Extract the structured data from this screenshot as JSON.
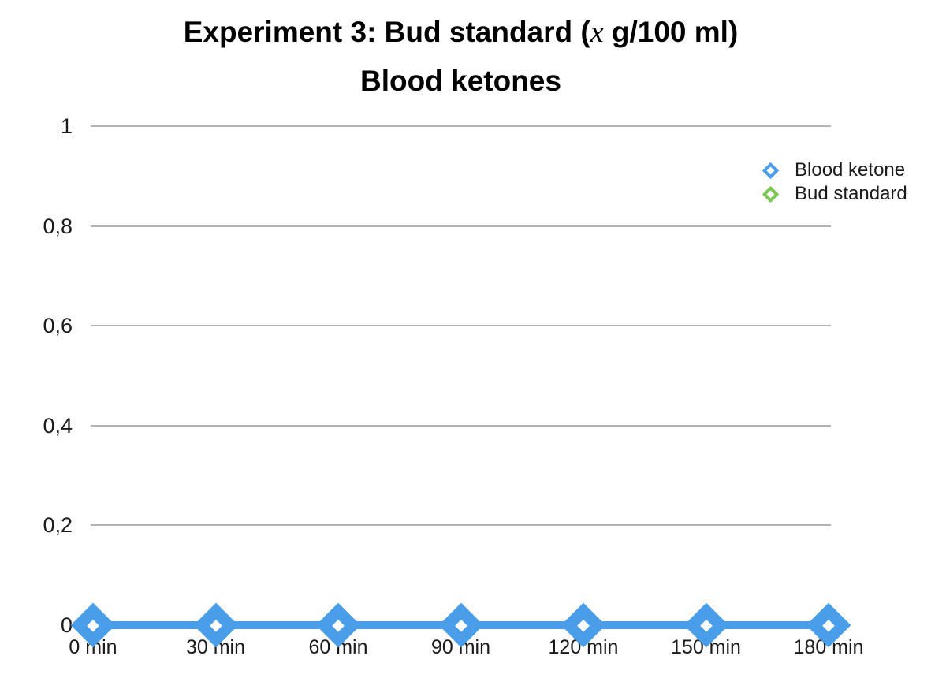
{
  "title": {
    "line1_prefix": "Experiment 3: Bud standard (",
    "line1_variable": "x",
    "line1_suffix": " g/100 ml)",
    "line2": "Blood ketones"
  },
  "legend": {
    "items": [
      {
        "label": "Blood ketone",
        "color": "#4a9de9"
      },
      {
        "label": "Bud standard",
        "color": "#7cc655"
      }
    ]
  },
  "chart_data": {
    "type": "line",
    "title": "Experiment 3: Bud standard (x g/100 ml)",
    "subtitle": "Blood ketones",
    "categories": [
      "0 min",
      "30 min",
      "60 min",
      "90 min",
      "120 min",
      "150 min",
      "180 min"
    ],
    "series": [
      {
        "name": "Blood ketone",
        "color": "#4a9de9",
        "marker": "open-diamond",
        "values": [
          0,
          0,
          0,
          0,
          0,
          0,
          0
        ]
      },
      {
        "name": "Bud standard",
        "color": "#7cc655",
        "marker": "open-diamond",
        "values": [
          0,
          0,
          0,
          0,
          0,
          0,
          0
        ]
      }
    ],
    "xlabel": "",
    "ylabel": "",
    "ylim": [
      0,
      1
    ],
    "yticks": [
      {
        "value": 0,
        "label": "0"
      },
      {
        "value": 0.2,
        "label": "0,2"
      },
      {
        "value": 0.4,
        "label": "0,4"
      },
      {
        "value": 0.6,
        "label": "0,6"
      },
      {
        "value": 0.8,
        "label": "0,8"
      },
      {
        "value": 1,
        "label": "1"
      }
    ],
    "grid": "horizontal",
    "gridline_color": "#b3b3b3",
    "text_color": "#1a1a1a",
    "legend_position": "top-right"
  }
}
